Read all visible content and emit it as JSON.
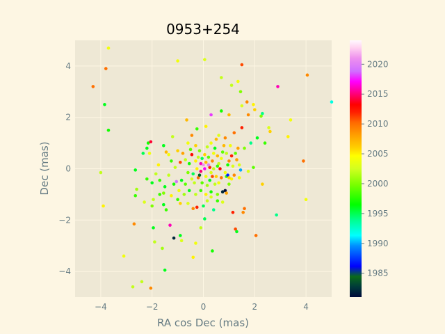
{
  "chart_data": {
    "type": "scatter",
    "title": "0953+254",
    "xlabel": "RA cos Dec (mas)",
    "ylabel": "Dec (mas)",
    "xlim": [
      -5,
      5
    ],
    "ylim": [
      -5,
      5
    ],
    "x_ticks": [
      -4,
      -2,
      0,
      2,
      4
    ],
    "y_ticks": [
      -4,
      -2,
      0,
      2,
      4
    ],
    "grid": true,
    "colorbar": {
      "label": "",
      "range": [
        1981,
        2024
      ],
      "ticks": [
        1985,
        1990,
        1995,
        2000,
        2005,
        2010,
        2015,
        2020
      ],
      "colormap": "gist_ncar-like"
    },
    "note": "Point cloud of a few hundred VLBI position offsets; values estimated from the image, representative subset of distinct outliers plus dense core.",
    "points": [
      [
        -3.7,
        4.7,
        2004
      ],
      [
        -3.8,
        3.9,
        2010
      ],
      [
        -4.3,
        3.2,
        2010
      ],
      [
        -3.85,
        2.5,
        1996
      ],
      [
        -3.7,
        1.5,
        1997
      ],
      [
        -4.0,
        -0.15,
        2002
      ],
      [
        -3.9,
        -1.45,
        2005
      ],
      [
        -3.1,
        -3.4,
        2004
      ],
      [
        -2.7,
        -2.15,
        2009
      ],
      [
        -2.75,
        -4.6,
        2002
      ],
      [
        -2.4,
        -4.4,
        2002
      ],
      [
        -2.05,
        -4.65,
        2009
      ],
      [
        -1.5,
        -3.95,
        1996
      ],
      [
        -1.6,
        -3.1,
        2001
      ],
      [
        -1.15,
        -2.7,
        1982
      ],
      [
        -1.3,
        -2.2,
        2016
      ],
      [
        -1.9,
        -2.85,
        2002
      ],
      [
        -1.95,
        -2.3,
        1996
      ],
      [
        -0.9,
        -2.6,
        1996
      ],
      [
        -0.3,
        -2.9,
        2004
      ],
      [
        -0.4,
        -3.45,
        2005
      ],
      [
        0.35,
        -3.2,
        1997
      ],
      [
        -0.1,
        -2.3,
        2002
      ],
      [
        0.05,
        -1.95,
        1995
      ],
      [
        -0.85,
        -2.8,
        2003
      ],
      [
        -1.0,
        4.2,
        2004
      ],
      [
        0.05,
        4.25,
        2003
      ],
      [
        1.5,
        4.05,
        2011
      ],
      [
        0.7,
        3.55,
        2002
      ],
      [
        1.35,
        3.4,
        2004
      ],
      [
        1.1,
        3.25,
        2002
      ],
      [
        1.45,
        3.0,
        2000
      ],
      [
        1.7,
        2.6,
        2009
      ],
      [
        1.95,
        2.5,
        2005
      ],
      [
        1.5,
        2.45,
        2003
      ],
      [
        2.3,
        2.15,
        1994
      ],
      [
        2.25,
        2.05,
        2000
      ],
      [
        2.0,
        2.3,
        2006
      ],
      [
        1.75,
        2.1,
        2009
      ],
      [
        2.55,
        1.6,
        2003
      ],
      [
        2.6,
        1.45,
        2006
      ],
      [
        3.4,
        1.9,
        2004
      ],
      [
        3.3,
        1.25,
        2005
      ],
      [
        2.9,
        3.2,
        2016
      ],
      [
        4.05,
        3.65,
        2009
      ],
      [
        5.0,
        2.6,
        1992
      ],
      [
        3.9,
        0.3,
        2010
      ],
      [
        4.0,
        -1.2,
        2004
      ],
      [
        2.85,
        -1.8,
        1994
      ],
      [
        2.3,
        -0.6,
        2006
      ],
      [
        2.05,
        -2.6,
        2010
      ],
      [
        1.6,
        -1.55,
        2010
      ],
      [
        1.55,
        -1.7,
        2009
      ],
      [
        1.25,
        -2.35,
        2011
      ],
      [
        1.3,
        -2.45,
        1996
      ],
      [
        1.15,
        -1.7,
        2012
      ],
      [
        1.1,
        -0.4,
        2005
      ],
      [
        1.4,
        -0.35,
        2004
      ],
      [
        1.45,
        -0.05,
        1990
      ],
      [
        1.75,
        -0.1,
        2003
      ],
      [
        1.95,
        0.05,
        1999
      ],
      [
        2.4,
        1.0,
        1998
      ],
      [
        2.1,
        1.2,
        1996
      ],
      [
        1.85,
        1.0,
        1994
      ],
      [
        1.6,
        0.8,
        2000
      ],
      [
        1.35,
        0.8,
        2008
      ],
      [
        1.5,
        1.6,
        2012
      ],
      [
        1.2,
        1.4,
        2010
      ],
      [
        1.0,
        2.1,
        2007
      ],
      [
        0.7,
        2.25,
        1997
      ],
      [
        0.3,
        2.1,
        2018
      ],
      [
        0.1,
        1.65,
        2005
      ],
      [
        -0.25,
        1.55,
        1998
      ],
      [
        -0.65,
        1.9,
        2007
      ],
      [
        -0.45,
        1.3,
        2009
      ],
      [
        -1.2,
        1.25,
        2002
      ],
      [
        -1.55,
        0.9,
        1996
      ],
      [
        -2.15,
        1.0,
        1997
      ],
      [
        -2.05,
        1.05,
        2014
      ],
      [
        -2.2,
        0.8,
        1996
      ],
      [
        -2.35,
        0.6,
        1995
      ],
      [
        -2.1,
        0.6,
        2004
      ],
      [
        -1.45,
        0.65,
        2007
      ],
      [
        -1.35,
        0.55,
        2004
      ],
      [
        -1.75,
        0.15,
        2005
      ],
      [
        -2.65,
        -0.05,
        1996
      ],
      [
        -2.6,
        -0.8,
        2001
      ],
      [
        -2.65,
        -1.05,
        1998
      ],
      [
        -2.2,
        -0.4,
        1998
      ],
      [
        -2.0,
        -0.55,
        1996
      ],
      [
        -2.3,
        -1.3,
        2003
      ],
      [
        -2.0,
        -1.45,
        2000
      ],
      [
        -1.95,
        -1.2,
        2002
      ],
      [
        -1.55,
        -1.4,
        1996
      ],
      [
        -1.45,
        -1.6,
        1998
      ],
      [
        -1.55,
        -0.95,
        2000
      ],
      [
        -1.5,
        -0.7,
        1996
      ],
      [
        -1.7,
        -1.0,
        1998
      ],
      [
        -1.25,
        -1.05,
        2005
      ],
      [
        -1.0,
        -1.2,
        1998
      ],
      [
        -0.9,
        -1.35,
        2006
      ],
      [
        -0.6,
        -1.35,
        2003
      ],
      [
        -0.4,
        -1.55,
        2009
      ],
      [
        -0.25,
        -1.5,
        2012
      ],
      [
        0.0,
        -1.45,
        1995
      ],
      [
        0.15,
        -1.25,
        2002
      ],
      [
        0.4,
        -1.6,
        1994
      ],
      [
        0.55,
        -1.25,
        1998
      ],
      [
        0.75,
        -1.3,
        2003
      ],
      [
        0.85,
        -0.85,
        1981
      ],
      [
        0.9,
        -0.95,
        2008
      ],
      [
        0.75,
        -0.9,
        1982
      ],
      [
        1.0,
        -0.6,
        2000
      ],
      [
        1.2,
        -0.25,
        2009
      ],
      [
        0.9,
        -0.3,
        1998
      ],
      [
        -0.9,
        0.25,
        2011
      ],
      [
        -1.1,
        0.05,
        2002
      ],
      [
        -0.85,
        -0.45,
        1996
      ],
      [
        -1.05,
        -0.5,
        2019
      ],
      [
        -0.7,
        -0.6,
        1999
      ],
      [
        -0.6,
        -0.15,
        2000
      ],
      [
        -0.55,
        0.2,
        1997
      ],
      [
        -0.45,
        0.55,
        2013
      ],
      [
        -0.5,
        0.75,
        1999
      ],
      [
        -0.3,
        0.9,
        2006
      ],
      [
        -0.2,
        0.45,
        2002
      ],
      [
        -0.1,
        0.2,
        2016
      ],
      [
        0.0,
        0.15,
        2021
      ],
      [
        0.05,
        0.0,
        2017
      ],
      [
        0.1,
        0.25,
        2007
      ],
      [
        0.2,
        0.45,
        1999
      ],
      [
        0.25,
        0.05,
        2012
      ],
      [
        0.3,
        -0.15,
        2003
      ],
      [
        0.35,
        0.3,
        2009
      ],
      [
        0.4,
        0.6,
        2004
      ],
      [
        0.45,
        0.8,
        1996
      ],
      [
        0.55,
        0.5,
        2007
      ],
      [
        0.6,
        0.2,
        2002
      ],
      [
        0.65,
        0.0,
        2013
      ],
      [
        0.7,
        0.4,
        2004
      ],
      [
        0.75,
        0.65,
        1999
      ],
      [
        0.8,
        0.9,
        2007
      ],
      [
        0.9,
        0.6,
        2002
      ],
      [
        1.0,
        0.3,
        2009
      ],
      [
        1.05,
        0.9,
        2004
      ],
      [
        1.1,
        0.5,
        2012
      ],
      [
        1.15,
        0.1,
        2003
      ],
      [
        0.95,
        0.15,
        1997
      ],
      [
        0.5,
        -0.3,
        2006
      ],
      [
        0.45,
        -0.6,
        2002
      ],
      [
        0.25,
        -0.45,
        1996
      ],
      [
        0.1,
        -0.3,
        2004
      ],
      [
        -0.05,
        -0.55,
        1999
      ],
      [
        -0.2,
        -0.35,
        2010
      ],
      [
        -0.35,
        -0.55,
        2002
      ],
      [
        -0.4,
        -0.2,
        1995
      ],
      [
        -0.25,
        0.0,
        2005
      ],
      [
        -0.1,
        -0.1,
        2015
      ],
      [
        0.15,
        -0.65,
        2001
      ],
      [
        0.3,
        -0.9,
        1997
      ],
      [
        0.6,
        -0.55,
        2004
      ],
      [
        0.7,
        -0.35,
        2010
      ],
      [
        -0.15,
        0.7,
        2000
      ],
      [
        0.05,
        0.55,
        2006
      ],
      [
        0.15,
        0.85,
        2002
      ],
      [
        0.3,
        1.0,
        2004
      ],
      [
        0.5,
        1.15,
        2007
      ],
      [
        0.6,
        1.3,
        2003
      ],
      [
        0.85,
        1.2,
        2009
      ],
      [
        -0.6,
        1.0,
        2004
      ],
      [
        -0.8,
        0.6,
        2008
      ],
      [
        -1.0,
        0.7,
        2006
      ],
      [
        -1.25,
        0.3,
        1998
      ],
      [
        -1.35,
        -0.25,
        2002
      ],
      [
        -1.15,
        -0.6,
        1997
      ],
      [
        -0.95,
        -0.85,
        2004
      ],
      [
        -0.75,
        -1.0,
        2001
      ],
      [
        -0.55,
        -0.85,
        1996
      ],
      [
        -0.3,
        -1.0,
        2002
      ],
      [
        -0.1,
        -0.85,
        1998
      ],
      [
        0.1,
        -1.0,
        2005
      ],
      [
        0.3,
        -1.1,
        2003
      ],
      [
        0.55,
        -1.0,
        2000
      ],
      [
        -1.7,
        -0.45,
        1998
      ],
      [
        -1.85,
        -0.2,
        2002
      ],
      [
        -0.05,
        0.4,
        1995
      ],
      [
        0.2,
        0.15,
        2020
      ],
      [
        -0.3,
        0.3,
        2005
      ],
      [
        0.35,
        -0.3,
        2011
      ],
      [
        0.55,
        0.1,
        1998
      ],
      [
        -0.45,
        -0.4,
        2003
      ],
      [
        0.85,
        -0.15,
        2004
      ],
      [
        1.25,
        0.6,
        1999
      ],
      [
        1.3,
        0.35,
        2008
      ],
      [
        1.4,
        0.15,
        2003
      ],
      [
        -0.15,
        -0.25,
        1984
      ],
      [
        0.95,
        -0.25,
        1987
      ],
      [
        1.0,
        -0.35,
        2006
      ],
      [
        0.4,
        0.0,
        2002
      ],
      [
        -0.7,
        0.35,
        2002
      ]
    ]
  }
}
